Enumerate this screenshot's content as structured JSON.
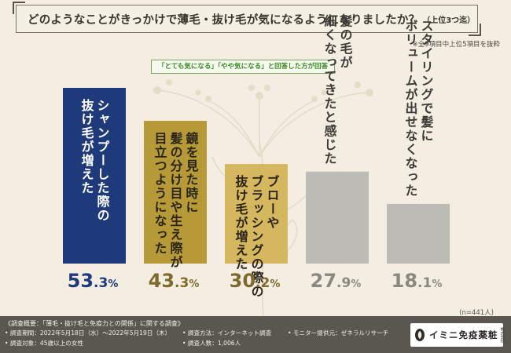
{
  "header": {
    "title": "どのようなことがきっかけで薄毛・抜け毛が気になるようになりましたか？",
    "title_suffix": "（上位3つ迄）",
    "note": "※全9項目中上位5項目を抜粋",
    "legend_tag": "「とても気になる」「やや気になる」と回答した方が回答"
  },
  "chart_data": {
    "type": "bar",
    "title": "どのようなことがきっかけで薄毛・抜け毛が気になるようになりましたか？（上位3つ迄）",
    "unit": "%",
    "ylim": [
      0,
      60
    ],
    "categories": [
      "シャンプーした際の抜け毛が増えた",
      "鏡を見た時に髪の分け目や生え際が目立つようになった",
      "ブローやブラッシングの際の抜け毛が増えた",
      "髪の毛が細くなってきたと感じた",
      "スタイリングで髪にボリュームが出せなくなった"
    ],
    "label_lines": [
      [
        "シャンプーした際の",
        "抜け毛が増えた"
      ],
      [
        "鏡を見た時に",
        "髪の分け目や生え際が",
        "目立つようになった"
      ],
      [
        "ブローや",
        "ブラッシングの際の",
        "抜け毛が増えた"
      ],
      [
        "髪の毛が",
        "細くなってきたと感じた"
      ],
      [
        "スタイリングで髪に",
        "ボリュームが出せなくなった"
      ]
    ],
    "value_labels": [
      {
        "int": "53",
        "dec": ".3",
        "unit": "%"
      },
      {
        "int": "43",
        "dec": ".3",
        "unit": "%"
      },
      {
        "int": "30",
        "dec": ".2",
        "unit": "%"
      },
      {
        "int": "27",
        "dec": ".9",
        "unit": "%"
      },
      {
        "int": "18",
        "dec": ".1",
        "unit": "%"
      }
    ],
    "values": [
      53.3,
      43.3,
      30.2,
      27.9,
      18.1
    ],
    "colors": [
      "#1f3a7a",
      "#b69a38",
      "#d5b760",
      "#bdbbb6",
      "#bdbbb6"
    ],
    "value_colors": [
      "#1f3a7a",
      "#7d6a2c",
      "#7d6a2c",
      "#8a8880",
      "#8a8880"
    ],
    "sample_size": "(n=441人)"
  },
  "footer": {
    "heading": "《調査概要：「薄毛・抜け毛と免疫力との関係」に関する調査》",
    "period": "• 調査期間：2022年5月18日（水）〜2022年5月19日（木）",
    "method": "• 調査方法：インターネット調査",
    "monitor": "• モニター提供元：ゼネラルリサーチ",
    "target": "• 調査対象：45歳以上の女性",
    "count": "• 調査人数：1,006人"
  },
  "brand": {
    "name": "イミニ免疫薬粧",
    "sub": "株式会社"
  }
}
